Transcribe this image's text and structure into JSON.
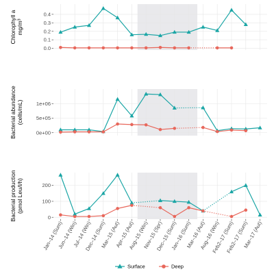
{
  "chart_data": [
    {
      "type": "line",
      "ylabel_lines": [
        "Chlorophyll a",
        "mg/m³"
      ],
      "ylim": [
        -0.02,
        0.52
      ],
      "yticks": [
        0.0,
        0.1,
        0.2,
        0.3,
        0.4
      ],
      "ytick_labels": [
        "0.0",
        "0.1",
        "0.2",
        "0.3",
        "0.4"
      ],
      "shaded_x_range": [
        6.4,
        10.6
      ],
      "grid": true,
      "series": [
        {
          "key": "surface",
          "points": [
            [
              1,
              0.19
            ],
            [
              2,
              0.25
            ],
            [
              3,
              0.27
            ],
            [
              4,
              0.47
            ],
            [
              5,
              0.36
            ],
            [
              6,
              0.16
            ],
            [
              7,
              0.165
            ],
            [
              8,
              0.15
            ],
            [
              9,
              0.19
            ],
            [
              10,
              0.19
            ],
            [
              11,
              0.25
            ],
            [
              12,
              0.21
            ],
            [
              13,
              0.45
            ],
            [
              14,
              0.28
            ]
          ],
          "segments": [
            {
              "from": 1,
              "to": 14,
              "style": "solid"
            }
          ]
        },
        {
          "key": "deep",
          "points": [
            [
              1,
              0.01
            ],
            [
              2,
              0.005
            ],
            [
              3,
              0.005
            ],
            [
              4,
              0.005
            ],
            [
              5,
              0.005
            ],
            [
              6,
              0.005
            ],
            [
              7,
              0.005
            ],
            [
              8,
              0.01
            ],
            [
              9,
              0.005
            ],
            [
              10,
              0.005
            ],
            [
              12,
              0.005
            ],
            [
              13,
              0.005
            ]
          ],
          "segments": [
            {
              "from": 1,
              "to": 10,
              "style": "solid"
            },
            {
              "from": 10,
              "to": 12,
              "style": "dotted"
            },
            {
              "from": 12,
              "to": 13,
              "style": "solid"
            }
          ]
        }
      ]
    },
    {
      "type": "line",
      "ylabel_lines": [
        "Bacterial abundance",
        "(cells/mL)"
      ],
      "ylim": [
        -100000,
        1500000
      ],
      "yticks": [
        0,
        500000,
        1000000
      ],
      "ytick_labels": [
        "0e+00",
        "5e+05",
        "1e+06"
      ],
      "shaded_x_range": [
        6.4,
        10.6
      ],
      "grid": true,
      "series": [
        {
          "key": "surface",
          "points": [
            [
              1,
              100000
            ],
            [
              2,
              100000
            ],
            [
              3,
              100000
            ],
            [
              4,
              40000
            ],
            [
              5,
              1150000
            ],
            [
              6,
              580000
            ],
            [
              7,
              1330000
            ],
            [
              8,
              1310000
            ],
            [
              9,
              850000
            ],
            [
              11,
              860000
            ],
            [
              12,
              70000
            ],
            [
              13,
              140000
            ],
            [
              14,
              130000
            ],
            [
              15,
              170000
            ]
          ],
          "segments": [
            {
              "from": 1,
              "to": 9,
              "style": "solid"
            },
            {
              "from": 9,
              "to": 11,
              "style": "dotted"
            },
            {
              "from": 11,
              "to": 15,
              "style": "solid"
            }
          ]
        },
        {
          "key": "deep",
          "points": [
            [
              1,
              20000
            ],
            [
              2,
              30000
            ],
            [
              3,
              30000
            ],
            [
              4,
              30000
            ],
            [
              5,
              300000
            ],
            [
              6,
              280000
            ],
            [
              7,
              270000
            ],
            [
              8,
              110000
            ],
            [
              9,
              150000
            ],
            [
              11,
              180000
            ],
            [
              12,
              40000
            ],
            [
              13,
              90000
            ],
            [
              14,
              70000
            ]
          ],
          "segments": [
            {
              "from": 1,
              "to": 9,
              "style": "solid"
            },
            {
              "from": 9,
              "to": 11,
              "style": "dotted"
            },
            {
              "from": 11,
              "to": 14,
              "style": "solid"
            }
          ]
        }
      ]
    },
    {
      "type": "line",
      "ylabel_lines": [
        "Bacterial production",
        "(pmol Leu/l/h)"
      ],
      "ylim": [
        -12,
        280
      ],
      "yticks": [
        0,
        100,
        200
      ],
      "ytick_labels": [
        "0",
        "100",
        "200"
      ],
      "shaded_x_range": [
        6.4,
        10.6
      ],
      "grid": true,
      "x_tick_labels": [
        "Jan–14 (Sum)",
        "Jun–14 (Win)",
        "Jul–14 (Win)",
        "Dec–14 (Sum)",
        "Mar–15 (Aut)",
        "Apr–15 (Aut)",
        "Aug–15 (Win)",
        "Nov–15 (Spr)",
        "Dec–15 (Sum)",
        "Jan–16 (Sum)",
        "Mar–16 (Aut)",
        "Aug–16 (Win)",
        "Feb2–17 (Sum)",
        "Feb2–17 (Sum)",
        "Mar–17 (Aut)"
      ],
      "series": [
        {
          "key": "surface",
          "points": [
            [
              1,
              265
            ],
            [
              2,
              20
            ],
            [
              3,
              55
            ],
            [
              4,
              150
            ],
            [
              5,
              265
            ],
            [
              6,
              90
            ],
            [
              8,
              105
            ],
            [
              9,
              100
            ],
            [
              10,
              95
            ],
            [
              11,
              40
            ],
            [
              13,
              160
            ],
            [
              14,
              200
            ],
            [
              15,
              15
            ]
          ],
          "segments": [
            {
              "from": 1,
              "to": 6,
              "style": "solid"
            },
            {
              "from": 6,
              "to": 8,
              "style": "dotted"
            },
            {
              "from": 8,
              "to": 11,
              "style": "solid"
            },
            {
              "from": 11,
              "to": 13,
              "style": "dotted"
            },
            {
              "from": 13,
              "to": 15,
              "style": "solid"
            }
          ]
        },
        {
          "key": "deep",
          "points": [
            [
              1,
              15
            ],
            [
              2,
              5
            ],
            [
              3,
              5
            ],
            [
              4,
              10
            ],
            [
              5,
              55
            ],
            [
              6,
              75
            ],
            [
              8,
              60
            ],
            [
              9,
              5
            ],
            [
              10,
              60
            ],
            [
              11,
              40
            ],
            [
              13,
              5
            ],
            [
              14,
              45
            ]
          ],
          "segments": [
            {
              "from": 1,
              "to": 6,
              "style": "solid"
            },
            {
              "from": 6,
              "to": 8,
              "style": "dotted"
            },
            {
              "from": 8,
              "to": 11,
              "style": "solid"
            },
            {
              "from": 11,
              "to": 13,
              "style": "dotted"
            },
            {
              "from": 13,
              "to": 14,
              "style": "solid"
            }
          ]
        }
      ]
    }
  ],
  "legend": {
    "position": "bottom",
    "items": [
      {
        "key": "surface",
        "label": "Surface",
        "marker": "triangle"
      },
      {
        "key": "deep",
        "label": "Deep",
        "marker": "circle"
      }
    ]
  },
  "colors": {
    "surface": "#1aa5a5",
    "deep": "#e8675b",
    "panel_bg": "#ffffff",
    "grid": "#e6e6e6",
    "shade": "#e9e9ec",
    "axis_text": "#4d4d4d"
  },
  "x_domain": [
    0.5,
    15.5
  ]
}
